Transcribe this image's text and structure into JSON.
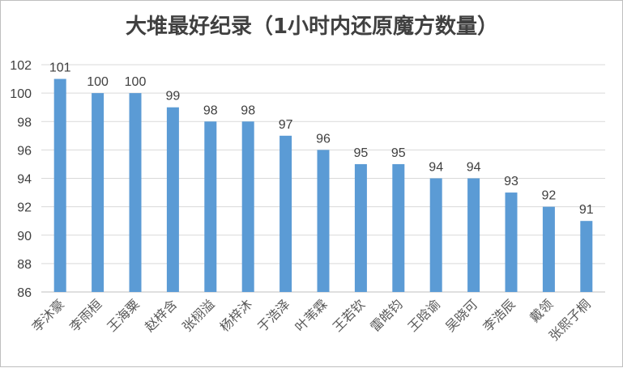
{
  "chart_data": {
    "type": "bar",
    "title": "大堆最好纪录（1小时内还原魔方数量）",
    "xlabel": "",
    "ylabel": "",
    "ylim": [
      86,
      102
    ],
    "yticks": [
      86,
      88,
      90,
      92,
      94,
      96,
      98,
      100,
      102
    ],
    "grid": true,
    "legend": "none",
    "bar_color": "#5b9bd5",
    "categories": [
      "李沐豪",
      "李雨桓",
      "王海粟",
      "赵梓含",
      "张栩溢",
      "杨梓沐",
      "于浩泽",
      "叶苇霖",
      "王若钦",
      "雷皓钧",
      "王晗谕",
      "吴晓可",
      "李浩辰",
      "戴领",
      "张熙子桐"
    ],
    "values": [
      101,
      100,
      100,
      99,
      98,
      98,
      97,
      96,
      95,
      95,
      94,
      94,
      93,
      92,
      91
    ]
  }
}
